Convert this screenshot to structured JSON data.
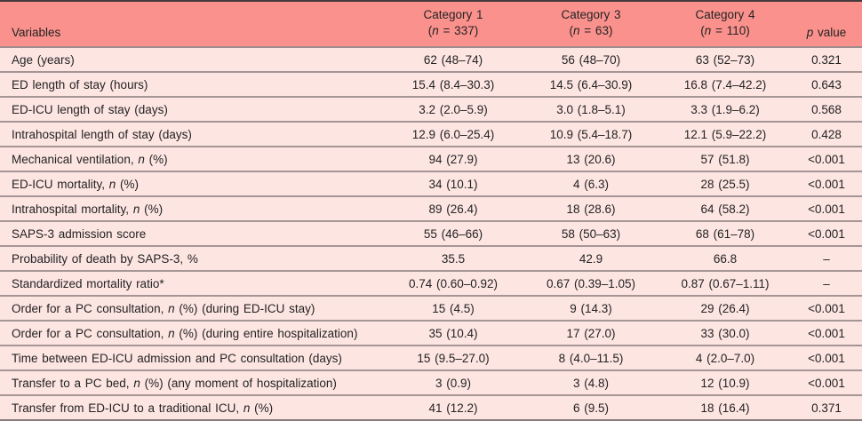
{
  "colors": {
    "header-bg": "#fa918d",
    "row-bg": "#fde5e2",
    "top-border": "#453b3c",
    "header-sep": "#9d8e8d",
    "row-sep": "#a59594",
    "bottom-border": "#887c7b",
    "text": "#232323"
  },
  "table": {
    "header": {
      "variables_label": "Variables",
      "categories": [
        {
          "title": "Category 1",
          "sub": [
            {
              "t": "("
            },
            {
              "t": "n",
              "i": true
            },
            {
              "t": " = 337)"
            }
          ]
        },
        {
          "title": "Category 3",
          "sub": [
            {
              "t": "("
            },
            {
              "t": "n",
              "i": true
            },
            {
              "t": " = 63)"
            }
          ]
        },
        {
          "title": "Category 4",
          "sub": [
            {
              "t": "("
            },
            {
              "t": "n",
              "i": true
            },
            {
              "t": " = 110)"
            }
          ]
        }
      ],
      "p_segments": [
        {
          "t": "p",
          "i": true
        },
        {
          "t": " value"
        }
      ]
    },
    "rows": [
      {
        "label": [
          {
            "t": "Age (years)"
          }
        ],
        "values": [
          "62 (48–74)",
          "56 (48–70)",
          "63 (52–73)"
        ],
        "p": "0.321"
      },
      {
        "label": [
          {
            "t": "ED length of stay (hours)"
          }
        ],
        "values": [
          "15.4 (8.4–30.3)",
          "14.5 (6.4–30.9)",
          "16.8 (7.4–42.2)"
        ],
        "p": "0.643"
      },
      {
        "label": [
          {
            "t": "ED-ICU length of stay (days)"
          }
        ],
        "values": [
          "3.2 (2.0–5.9)",
          "3.0 (1.8–5.1)",
          "3.3 (1.9–6.2)"
        ],
        "p": "0.568"
      },
      {
        "label": [
          {
            "t": "Intrahospital length of stay (days)"
          }
        ],
        "values": [
          "12.9 (6.0–25.4)",
          "10.9 (5.4–18.7)",
          "12.1 (5.9–22.2)"
        ],
        "p": "0.428"
      },
      {
        "label": [
          {
            "t": "Mechanical ventilation, "
          },
          {
            "t": "n",
            "i": true
          },
          {
            "t": " (%)"
          }
        ],
        "values": [
          "94 (27.9)",
          "13 (20.6)",
          "57 (51.8)"
        ],
        "p": "<0.001"
      },
      {
        "label": [
          {
            "t": "ED-ICU mortality, "
          },
          {
            "t": "n",
            "i": true
          },
          {
            "t": " (%)"
          }
        ],
        "values": [
          "34 (10.1)",
          "4 (6.3)",
          "28 (25.5)"
        ],
        "p": "<0.001"
      },
      {
        "label": [
          {
            "t": "Intrahospital mortality, "
          },
          {
            "t": "n",
            "i": true
          },
          {
            "t": " (%)"
          }
        ],
        "values": [
          "89 (26.4)",
          "18 (28.6)",
          "64 (58.2)"
        ],
        "p": "<0.001"
      },
      {
        "label": [
          {
            "t": "SAPS-3 admission score"
          }
        ],
        "values": [
          "55 (46–66)",
          "58 (50–63)",
          "68 (61–78)"
        ],
        "p": "<0.001"
      },
      {
        "label": [
          {
            "t": "Probability of death by SAPS-3, %"
          }
        ],
        "values": [
          "35.5",
          "42.9",
          "66.8"
        ],
        "p": "–"
      },
      {
        "label": [
          {
            "t": "Standardized mortality ratio*"
          }
        ],
        "values": [
          "0.74 (0.60–0.92)",
          "0.67 (0.39–1.05)",
          "0.87 (0.67–1.11)"
        ],
        "p": "–"
      },
      {
        "label": [
          {
            "t": "Order for a PC consultation, "
          },
          {
            "t": "n",
            "i": true
          },
          {
            "t": " (%) (during ED-ICU stay)"
          }
        ],
        "values": [
          "15 (4.5)",
          "9 (14.3)",
          "29 (26.4)"
        ],
        "p": "<0.001"
      },
      {
        "label": [
          {
            "t": "Order for a PC consultation, "
          },
          {
            "t": "n",
            "i": true
          },
          {
            "t": " (%) (during entire hospitalization)"
          }
        ],
        "values": [
          "35 (10.4)",
          "17 (27.0)",
          "33 (30.0)"
        ],
        "p": "<0.001"
      },
      {
        "label": [
          {
            "t": "Time between ED-ICU admission and PC consultation (days)"
          }
        ],
        "values": [
          "15 (9.5–27.0)",
          "8 (4.0–11.5)",
          "4 (2.0–7.0)"
        ],
        "p": "<0.001"
      },
      {
        "label": [
          {
            "t": "Transfer to a PC bed, "
          },
          {
            "t": "n",
            "i": true
          },
          {
            "t": " (%) (any moment of hospitalization)"
          }
        ],
        "values": [
          "3 (0.9)",
          "3 (4.8)",
          "12 (10.9)"
        ],
        "p": "<0.001"
      },
      {
        "label": [
          {
            "t": "Transfer from ED-ICU to a traditional ICU, "
          },
          {
            "t": "n",
            "i": true
          },
          {
            "t": " (%)"
          }
        ],
        "values": [
          "41 (12.2)",
          "6 (9.5)",
          "18 (16.4)"
        ],
        "p": "0.371"
      }
    ]
  }
}
